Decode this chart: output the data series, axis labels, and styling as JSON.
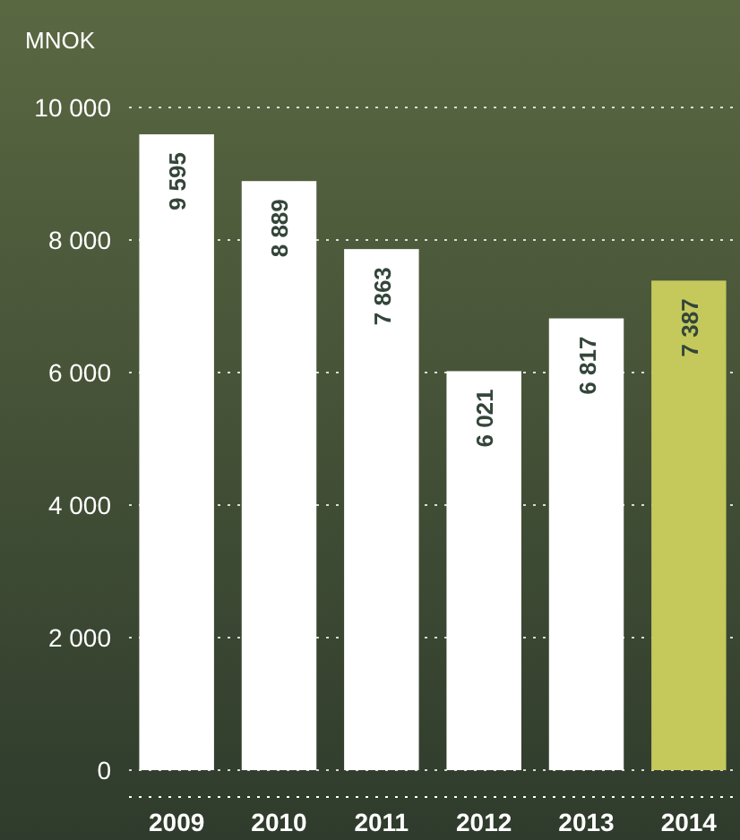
{
  "chart_data": {
    "type": "bar",
    "ylabel": "MNOK",
    "categories": [
      "2009",
      "2010",
      "2011",
      "2012",
      "2013",
      "2014"
    ],
    "values": [
      9595,
      8889,
      7863,
      6021,
      6817,
      7387
    ],
    "colors": [
      "#ffffff",
      "#ffffff",
      "#ffffff",
      "#ffffff",
      "#ffffff",
      "#c5c95c"
    ],
    "value_labels": [
      "9 595",
      "8 889",
      "7 863",
      "6 021",
      "6 817",
      "7 387"
    ],
    "ylim": [
      0,
      10000
    ],
    "yticks": [
      {
        "value": 0,
        "label": "0"
      },
      {
        "value": 2000,
        "label": "2 000"
      },
      {
        "value": 4000,
        "label": "4 000"
      },
      {
        "value": 6000,
        "label": "6 000"
      },
      {
        "value": 8000,
        "label": "8 000"
      },
      {
        "value": 10000,
        "label": "10 000"
      }
    ],
    "grid": "y"
  }
}
